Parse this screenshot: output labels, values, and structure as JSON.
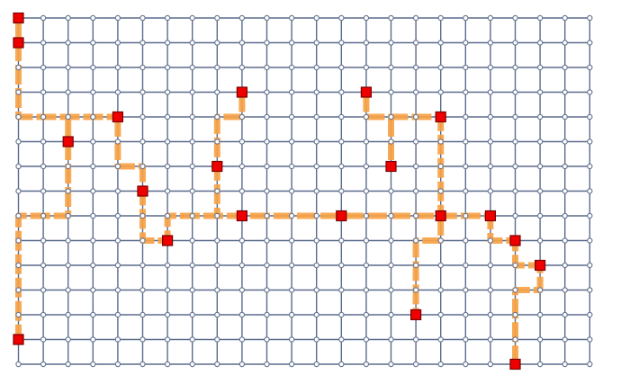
{
  "diagram": {
    "type": "grid-steiner-tree",
    "grid": {
      "columns": 24,
      "rows": 15
    },
    "colors": {
      "grid_line": "#5a6b8c",
      "grid_node_fill": "#ffffff",
      "grid_node_stroke": "#6a7896",
      "route": "#f7a245",
      "terminal_fill": "#ee0000",
      "terminal_stroke": "#7a0000"
    },
    "terminals": [
      {
        "id": "t1",
        "col": 0,
        "row": 0
      },
      {
        "id": "t2",
        "col": 0,
        "row": 1
      },
      {
        "id": "t3",
        "col": 0,
        "row": 13
      },
      {
        "id": "t4",
        "col": 2,
        "row": 5
      },
      {
        "id": "t5",
        "col": 4,
        "row": 4
      },
      {
        "id": "t6",
        "col": 5,
        "row": 7
      },
      {
        "id": "t7",
        "col": 6,
        "row": 9
      },
      {
        "id": "t8",
        "col": 8,
        "row": 6
      },
      {
        "id": "t9",
        "col": 9,
        "row": 3
      },
      {
        "id": "t10",
        "col": 9,
        "row": 8
      },
      {
        "id": "t11",
        "col": 13,
        "row": 8
      },
      {
        "id": "t12",
        "col": 14,
        "row": 3
      },
      {
        "id": "t13",
        "col": 15,
        "row": 6
      },
      {
        "id": "t14",
        "col": 16,
        "row": 12
      },
      {
        "id": "t15",
        "col": 17,
        "row": 4
      },
      {
        "id": "t16",
        "col": 17,
        "row": 8
      },
      {
        "id": "t17",
        "col": 19,
        "row": 8
      },
      {
        "id": "t18",
        "col": 20,
        "row": 9
      },
      {
        "id": "t19",
        "col": 20,
        "row": 14
      },
      {
        "id": "t20",
        "col": 21,
        "row": 10
      }
    ],
    "routes": [
      {
        "id": "r1",
        "points": [
          [
            0,
            0
          ],
          [
            0,
            4
          ],
          [
            4,
            4
          ]
        ]
      },
      {
        "id": "r2",
        "points": [
          [
            2,
            4
          ],
          [
            2,
            8
          ],
          [
            0,
            8
          ],
          [
            0,
            13
          ]
        ]
      },
      {
        "id": "r3",
        "points": [
          [
            4,
            4
          ],
          [
            4,
            6
          ],
          [
            5,
            6
          ],
          [
            5,
            9
          ],
          [
            6,
            9
          ],
          [
            6,
            8
          ],
          [
            17,
            8
          ],
          [
            19,
            8
          ],
          [
            19,
            9
          ],
          [
            20,
            9
          ],
          [
            20,
            10
          ],
          [
            21,
            10
          ],
          [
            21,
            11
          ],
          [
            20,
            11
          ],
          [
            20,
            14
          ]
        ]
      },
      {
        "id": "r4",
        "points": [
          [
            9,
            3
          ],
          [
            9,
            4
          ],
          [
            8,
            4
          ],
          [
            8,
            8
          ]
        ]
      },
      {
        "id": "r5",
        "points": [
          [
            14,
            3
          ],
          [
            14,
            4
          ],
          [
            17,
            4
          ],
          [
            17,
            8
          ]
        ]
      },
      {
        "id": "r6",
        "points": [
          [
            15,
            4
          ],
          [
            15,
            6
          ]
        ]
      },
      {
        "id": "r7",
        "points": [
          [
            17,
            8
          ],
          [
            17,
            9
          ],
          [
            16,
            9
          ],
          [
            16,
            12
          ]
        ]
      }
    ]
  }
}
